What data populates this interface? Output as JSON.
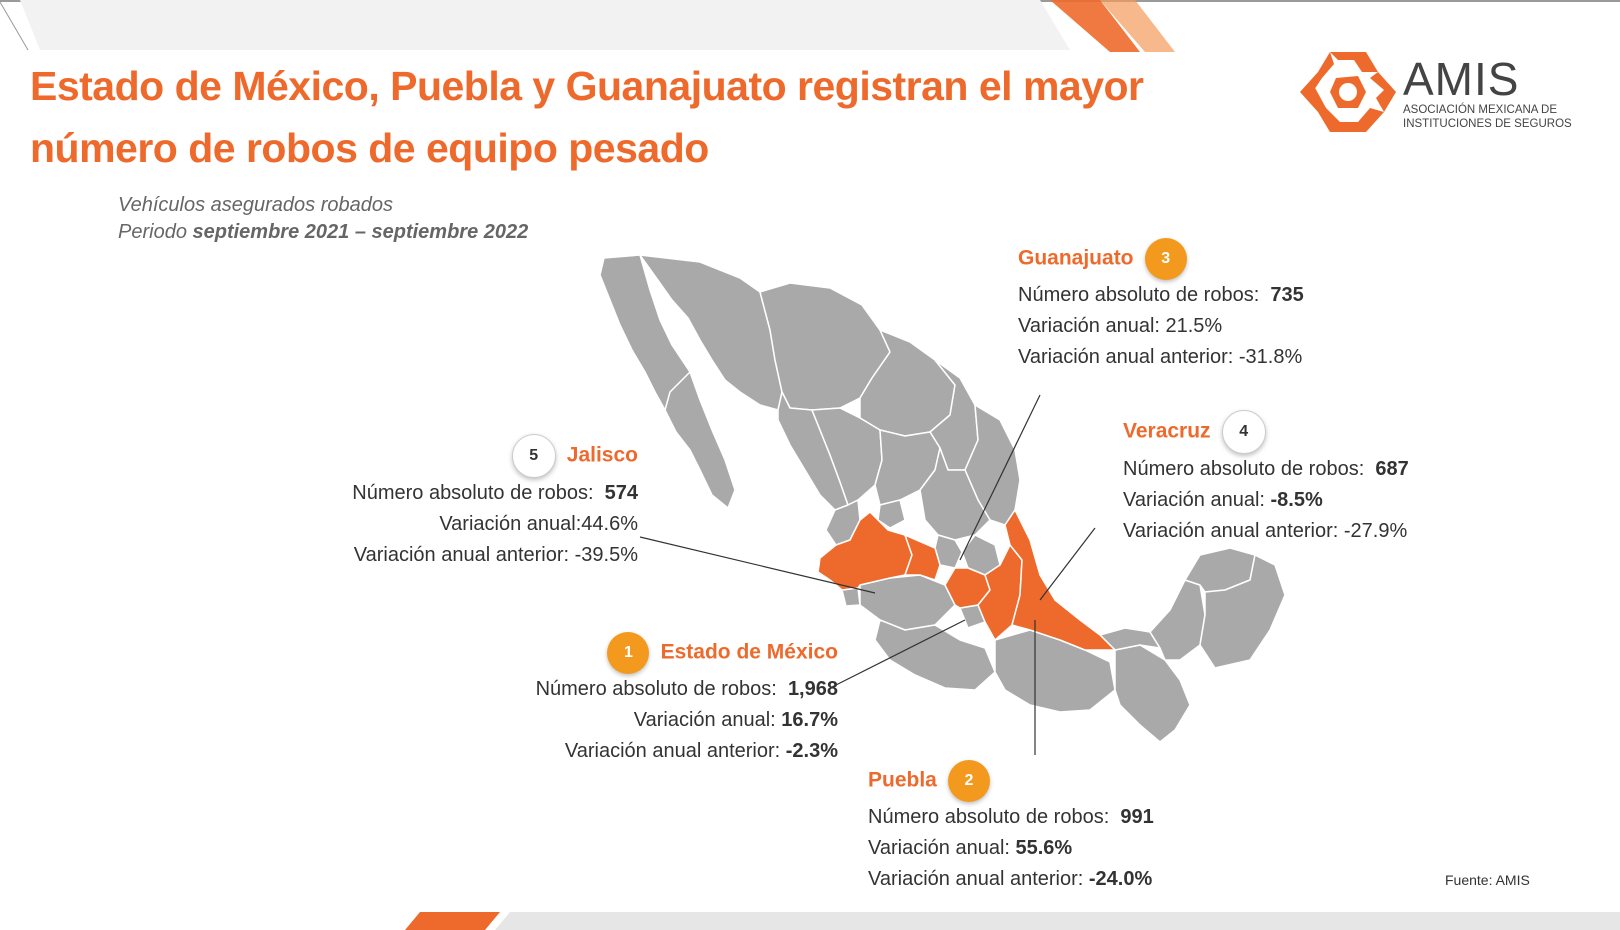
{
  "title": "Estado de México, Puebla y Guanajuato registran el mayor número de robos de equipo pesado",
  "subtitle_line1": "Vehículos asegurados robados",
  "subtitle_period_label": "Periodo ",
  "subtitle_period_value": "septiembre 2021 – septiembre 2022",
  "logo": {
    "name": "AMIS",
    "line1": "Asociación Mexicana de",
    "line2": "Instituciones de Seguros",
    "icon": "amis-logo-icon"
  },
  "colors": {
    "accent": "#ee6a2c",
    "badge_orange": "#f39a1e",
    "map_gray": "#a9a9a9",
    "map_highlight": "#ee6a2c"
  },
  "states": {
    "guanajuato": {
      "rank": "3",
      "name": "Guanajuato",
      "abs_label": "Número absoluto de robos:",
      "abs_value": "735",
      "var_label": "Variación anual: ",
      "var_value": "21.5%",
      "prev_label": "Variación anual anterior: ",
      "prev_value": "-31.8%"
    },
    "veracruz": {
      "rank": "4",
      "name": "Veracruz",
      "abs_label": "Número absoluto de robos:",
      "abs_value": "687",
      "var_label": "Variación anual: ",
      "var_value": "-8.5%",
      "prev_label": "Variación anual anterior: ",
      "prev_value": "-27.9%"
    },
    "jalisco": {
      "rank": "5",
      "name": "Jalisco",
      "abs_label": "Número absoluto de robos:",
      "abs_value": "574",
      "var_label": "Variación anual:",
      "var_value": "44.6%",
      "prev_label": "Variación anual anterior: ",
      "prev_value": "-39.5%"
    },
    "edomex": {
      "rank": "1",
      "name": "Estado de México",
      "abs_label": "Número absoluto de robos:",
      "abs_value": "1,968",
      "var_label": "Variación anual: ",
      "var_value": "16.7%",
      "prev_label": "Variación anual anterior: ",
      "prev_value": "-2.3%"
    },
    "puebla": {
      "rank": "2",
      "name": "Puebla",
      "abs_label": "Número absoluto de robos:",
      "abs_value": "991",
      "var_label": "Variación anual: ",
      "var_value": "55.6%",
      "prev_label": "Variación anual anterior: ",
      "prev_value": "-24.0%"
    }
  },
  "source": "Fuente:  AMIS"
}
